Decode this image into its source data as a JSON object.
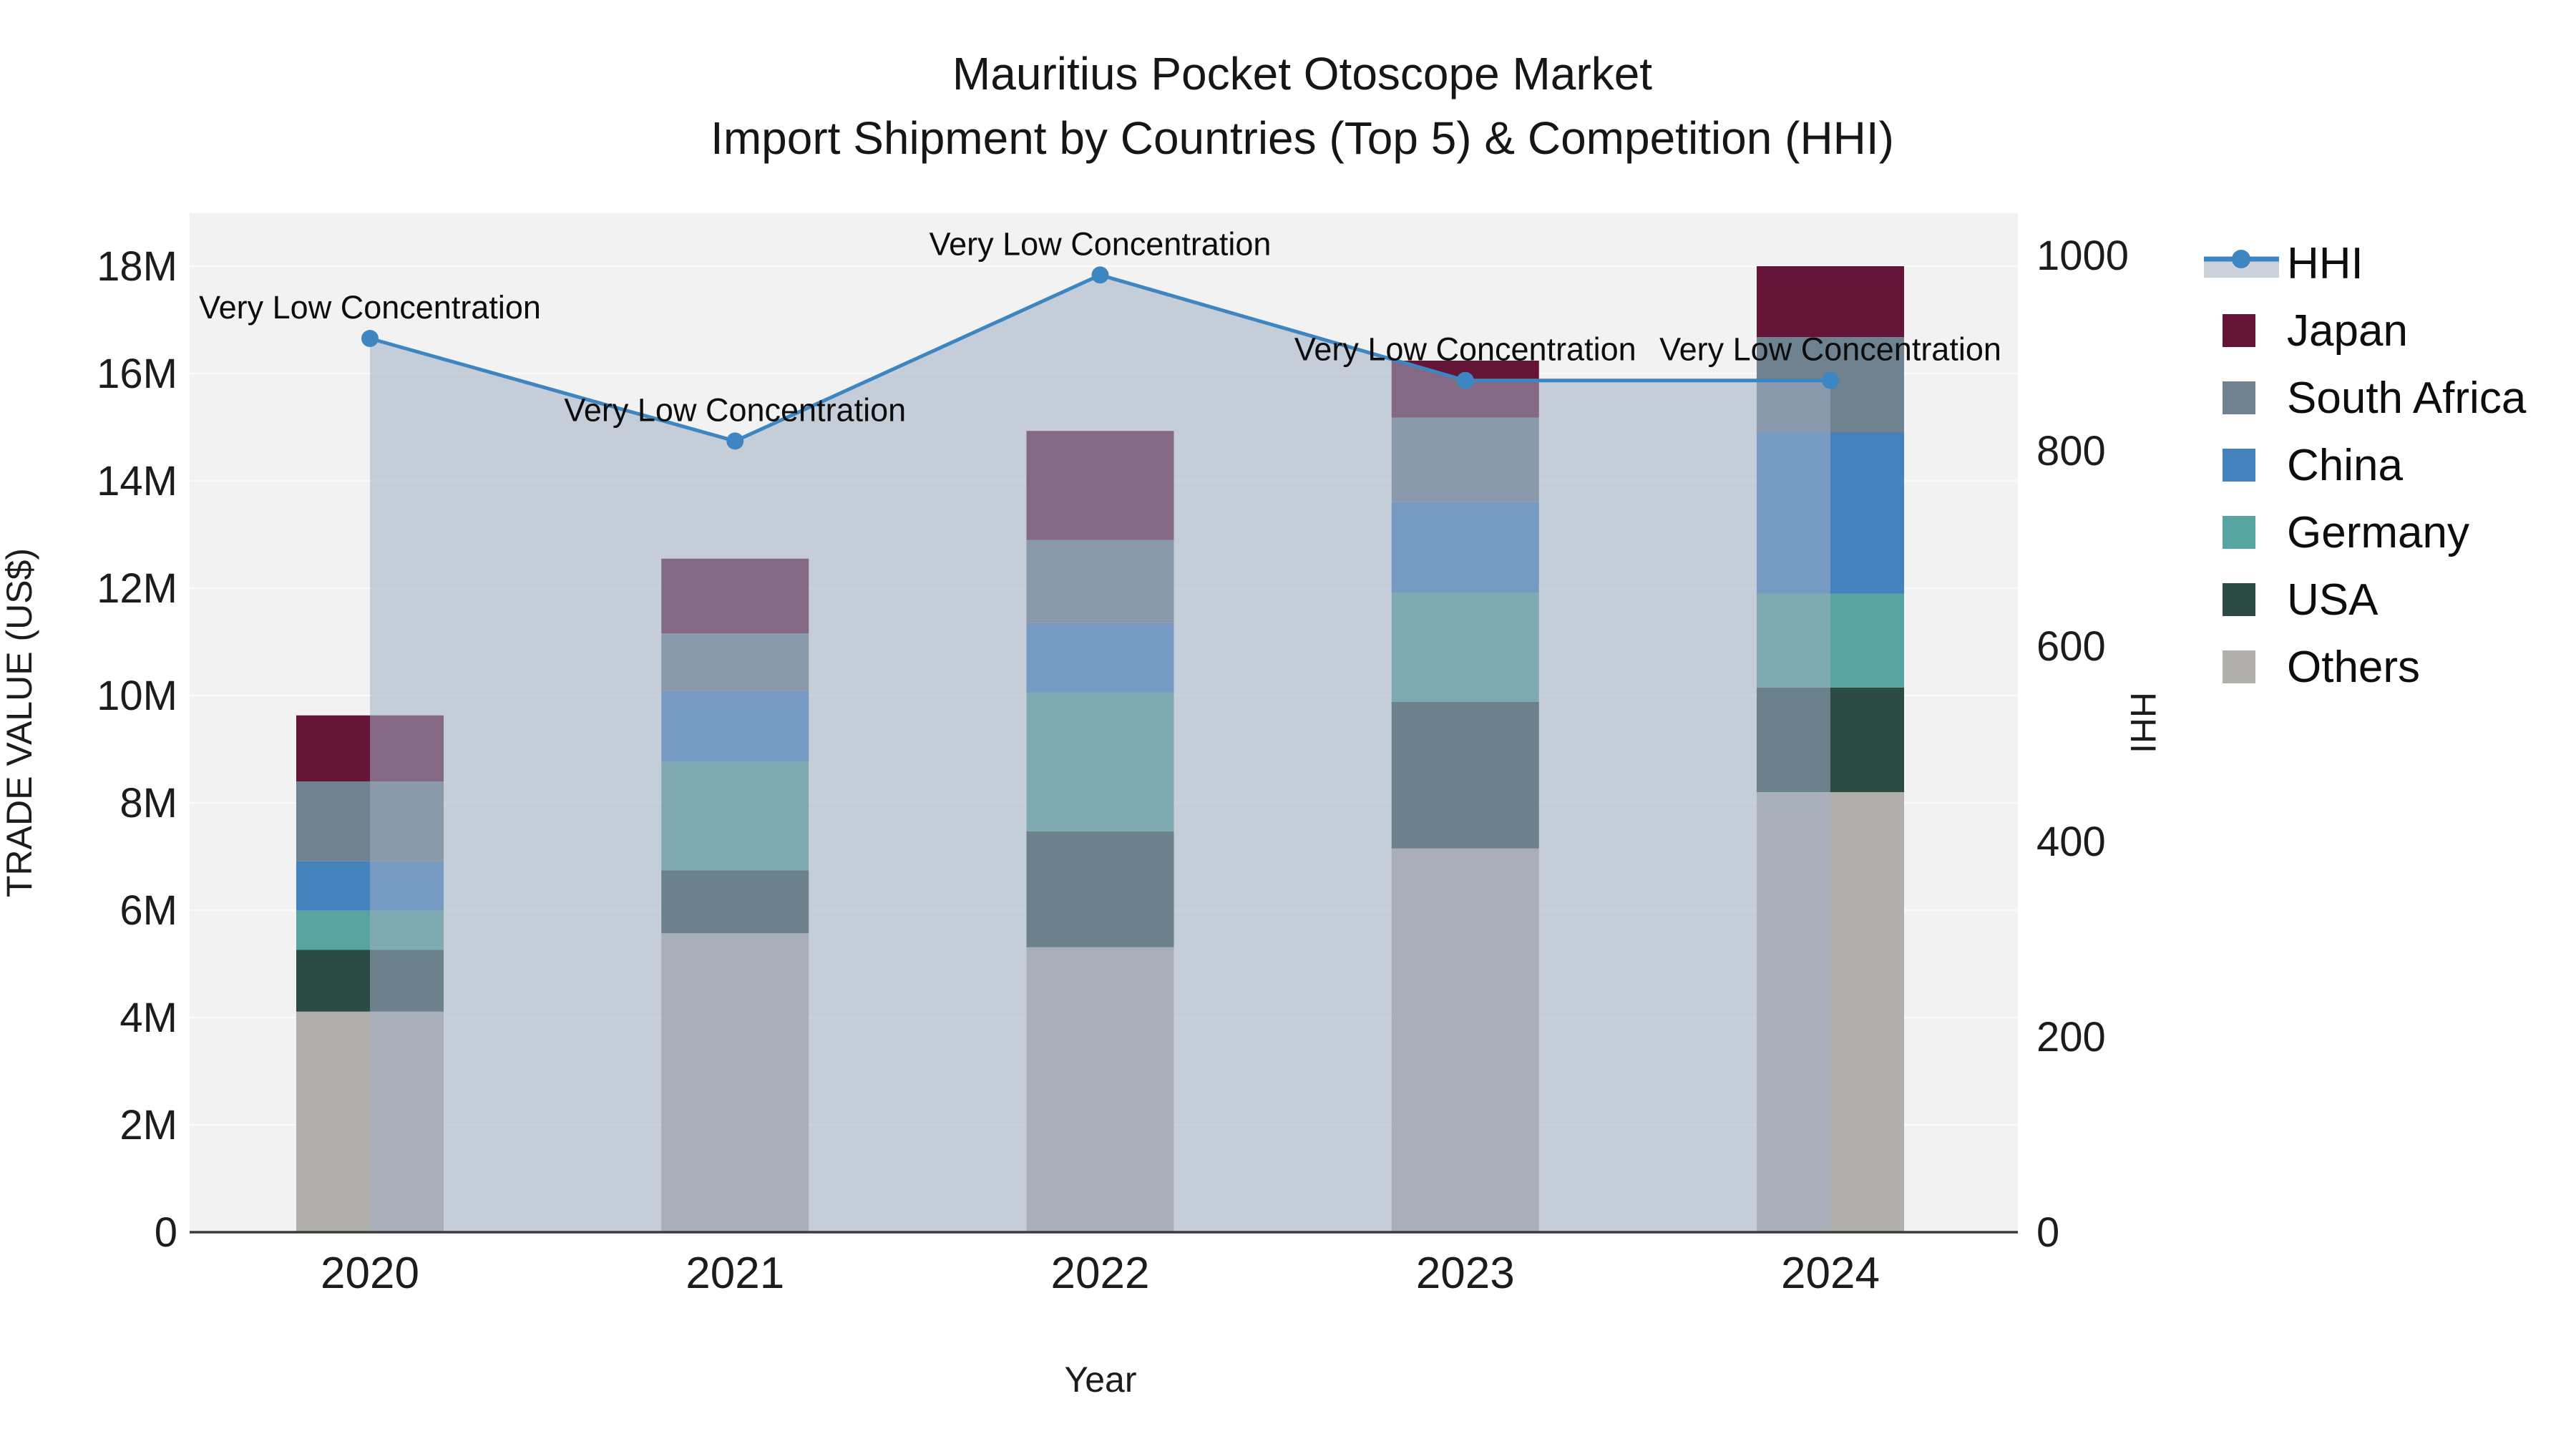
{
  "title": {
    "line1": "Mauritius Pocket Otoscope Market",
    "line2": "Import Shipment by Countries (Top 5) & Competition (HHI)"
  },
  "axes": {
    "left": {
      "title": "TRADE VALUE (US$)",
      "tick_values": [
        0,
        2,
        4,
        6,
        8,
        10,
        12,
        14,
        16,
        18
      ],
      "tick_labels": [
        "0",
        "2M",
        "4M",
        "6M",
        "8M",
        "10M",
        "12M",
        "14M",
        "16M",
        "18M"
      ],
      "range_m": [
        0,
        18
      ]
    },
    "right": {
      "title": "HHI",
      "tick_values": [
        0,
        200,
        400,
        600,
        800,
        1000
      ],
      "tick_labels": [
        "0",
        "200",
        "400",
        "600",
        "800",
        "1000"
      ],
      "range": [
        0,
        1000
      ]
    },
    "x": {
      "title": "Year",
      "categories": [
        "2020",
        "2021",
        "2022",
        "2023",
        "2024"
      ]
    }
  },
  "chart_data": {
    "type": "bar",
    "subtype": "stacked-bars-with-line-overlay",
    "categories": [
      "2020",
      "2021",
      "2022",
      "2023",
      "2024"
    ],
    "values_unit": "millions USD",
    "series": [
      {
        "name": "Others",
        "color": "#b1afab",
        "values": [
          4.11,
          5.57,
          5.31,
          7.15,
          8.2
        ]
      },
      {
        "name": "USA",
        "color": "#2d4b45",
        "values": [
          1.15,
          1.17,
          2.16,
          2.73,
          1.95
        ]
      },
      {
        "name": "Germany",
        "color": "#58a4a1",
        "values": [
          0.73,
          2.03,
          2.59,
          2.04,
          1.75
        ]
      },
      {
        "name": "China",
        "color": "#4382bd",
        "values": [
          0.92,
          1.32,
          1.29,
          1.69,
          3.0
        ]
      },
      {
        "name": "South Africa",
        "color": "#70818f",
        "values": [
          1.49,
          1.07,
          1.55,
          1.57,
          1.78
        ]
      },
      {
        "name": "Japan",
        "color": "#651537",
        "values": [
          1.23,
          1.39,
          2.03,
          1.06,
          1.32
        ]
      }
    ],
    "bar_totals_m": [
      9.63,
      12.55,
      14.93,
      16.24,
      18.0
    ],
    "line": {
      "name": "HHI",
      "axis": "right",
      "color": "#3e86c2",
      "area_fill": "rgba(160,174,196,0.55)",
      "values": [
        915,
        810,
        980,
        872,
        872
      ]
    },
    "annotations": [
      "Very Low Concentration",
      "Very Low Concentration",
      "Very Low Concentration",
      "Very Low Concentration",
      "Very Low Concentration"
    ],
    "grid": "horizontal, every 2M, light",
    "legend_position": "right"
  },
  "legend": {
    "items": [
      {
        "label": "HHI",
        "type": "line",
        "color": "#3e86c2",
        "band": "#ccd2da"
      },
      {
        "label": "Japan",
        "type": "swatch",
        "color": "#651537"
      },
      {
        "label": "South Africa",
        "type": "swatch",
        "color": "#70818f"
      },
      {
        "label": "China",
        "type": "swatch",
        "color": "#4382bd"
      },
      {
        "label": "Germany",
        "type": "swatch",
        "color": "#58a4a1"
      },
      {
        "label": "USA",
        "type": "swatch",
        "color": "#2d4b45"
      },
      {
        "label": "Others",
        "type": "swatch",
        "color": "#b1afab"
      }
    ]
  },
  "colors": {
    "plot_background": "#f2f2f2",
    "gridline": "#fdfdfd",
    "axis_line": "#3b3b3b",
    "text": "#111111"
  }
}
